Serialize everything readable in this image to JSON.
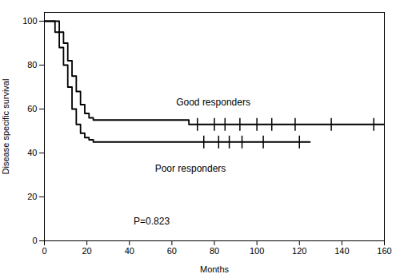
{
  "chart_data": {
    "type": "step",
    "xlabel": "Months",
    "ylabel": "Disease specific survival",
    "xlim": [
      0,
      160
    ],
    "ylim": [
      0,
      104
    ],
    "xticks": [
      0,
      20,
      40,
      60,
      80,
      100,
      120,
      140,
      160
    ],
    "yticks": [
      0,
      20,
      40,
      60,
      80,
      100
    ],
    "series": [
      {
        "name": "Good responders",
        "color": "#000000",
        "x": [
          0,
          5,
          7,
          9,
          11,
          13,
          15,
          17,
          19,
          21,
          23,
          65,
          68,
          160
        ],
        "values": [
          100,
          100,
          95,
          90,
          82,
          75,
          68,
          62,
          58,
          56,
          55,
          55,
          53,
          53
        ],
        "censored_x": [
          72,
          80,
          85,
          92,
          100,
          107,
          118,
          135,
          155
        ],
        "censored_y": [
          53,
          53,
          53,
          53,
          53,
          53,
          53,
          53,
          53
        ]
      },
      {
        "name": "Poor responders",
        "color": "#000000",
        "x": [
          0,
          5,
          7,
          9,
          11,
          13,
          15,
          17,
          19,
          21,
          23,
          125
        ],
        "values": [
          100,
          95,
          88,
          80,
          70,
          60,
          53,
          49,
          47,
          46,
          45,
          45
        ],
        "censored_x": [
          75,
          82,
          87,
          93,
          103,
          120
        ],
        "censored_y": [
          45,
          45,
          45,
          45,
          45,
          45
        ]
      }
    ],
    "annotations": [
      {
        "text": "Good responders",
        "x": 62,
        "y": 63
      },
      {
        "text": "Poor responders",
        "x": 52,
        "y": 33
      },
      {
        "text": "P=0.823",
        "x": 42,
        "y": 9
      }
    ]
  }
}
